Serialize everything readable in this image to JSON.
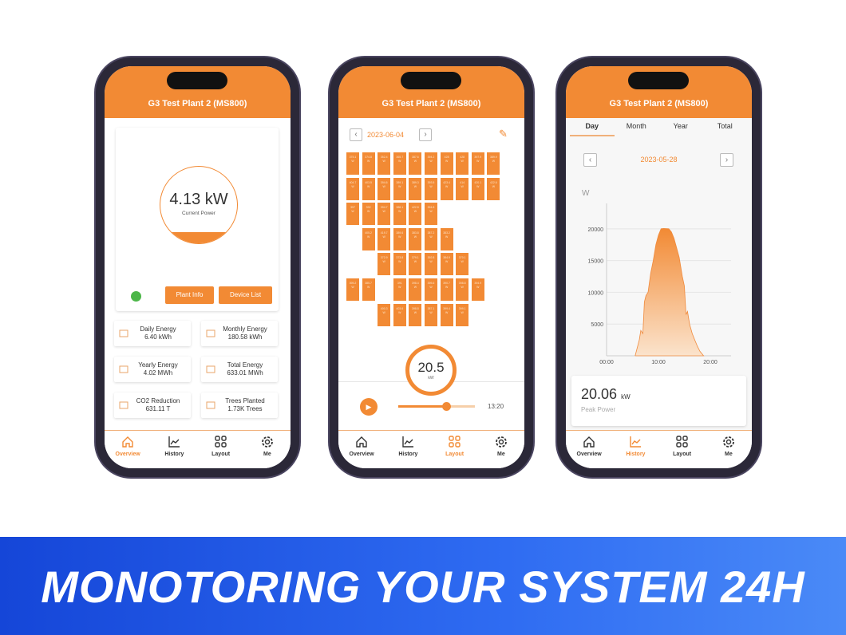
{
  "plant_title": "G3 Test Plant 2 (MS800)",
  "nav": [
    {
      "label": "Overview",
      "icon": "home-icon"
    },
    {
      "label": "History",
      "icon": "chart-icon"
    },
    {
      "label": "Layout",
      "icon": "grid-icon"
    },
    {
      "label": "Me",
      "icon": "gear-icon"
    }
  ],
  "accent": "#f28a34",
  "overview": {
    "power_value": "4.13 kW",
    "power_label": "Current Power",
    "status_color": "#4cb648",
    "plant_info": "Plant Info",
    "device_list": "Device List",
    "stats": [
      {
        "label": "Daily Energy",
        "value": "6.40 kWh",
        "icon": "battery-icon"
      },
      {
        "label": "Monthly Energy",
        "value": "180.58 kWh",
        "icon": "calendar-icon"
      },
      {
        "label": "Yearly Energy",
        "value": "4.02 MWh",
        "icon": "bar-chart-icon"
      },
      {
        "label": "Total Energy",
        "value": "633.01 MWh",
        "icon": "trend-icon"
      },
      {
        "label": "CO2 Reduction",
        "value": "631.11 T",
        "icon": "cloud-icon"
      },
      {
        "label": "Trees Planted",
        "value": "1.73K Trees",
        "icon": "trees-icon"
      }
    ]
  },
  "layout": {
    "date": "2023-06-04",
    "power_value": "20.5",
    "power_unit": "kW",
    "time": "13:20",
    "slider_progress": 0.62,
    "panel_unit": "W",
    "rows": [
      {
        "start": 0,
        "skip": [],
        "values": [
          "375.1",
          "374.8",
          "352.4",
          "365.7",
          "387.6",
          "394.2",
          "428",
          "428",
          "397.9",
          "389.9"
        ]
      },
      {
        "start": 0,
        "skip": [],
        "values": [
          "404.7",
          "403.5",
          "394.6",
          "389.1",
          "389.3",
          "393.5",
          "423.4",
          "414",
          "420.1",
          "422.6"
        ]
      },
      {
        "start": 0,
        "skip": [],
        "values": [
          "397",
          "392",
          "394.7",
          "388.1",
          "422.8",
          "394.8"
        ]
      },
      {
        "start": 1,
        "skip": [],
        "values": [
          "405.2",
          "419.7",
          "389.6",
          "383.8",
          "387.2",
          "383.2"
        ]
      },
      {
        "start": 2,
        "skip": [],
        "values": [
          "372.9",
          "373.8",
          "379.1",
          "392.8",
          "384.9",
          "370.1"
        ]
      },
      {
        "start": 0,
        "skip": [
          2
        ],
        "values": [
          "395.2",
          "385.7",
          "391",
          "398.4",
          "395.6",
          "390.7",
          "398.8",
          "394.9"
        ]
      },
      {
        "start": 2,
        "skip": [],
        "values": [
          "400.3",
          "403.6",
          "398.8",
          "387.1",
          "399.4",
          "399.1"
        ]
      }
    ]
  },
  "history": {
    "tabs": [
      "Day",
      "Month",
      "Year",
      "Total"
    ],
    "active_tab": "Day",
    "date": "2023-05-28",
    "peak_value": "20.06",
    "peak_unit": "kW",
    "peak_label": "Peak Power",
    "chart_data": {
      "type": "area",
      "ylabel": "W",
      "ylim": [
        0,
        24000
      ],
      "xlim": [
        0,
        24
      ],
      "yticks": [
        "5000",
        "10000",
        "15000",
        "20000"
      ],
      "xticks": [
        "00:00",
        "10:00",
        "20:00"
      ],
      "x": [
        5.5,
        6.3,
        6.6,
        7,
        7.3,
        7.6,
        8,
        8.5,
        9,
        9.5,
        10,
        10.5,
        11,
        12,
        12.5,
        13,
        13.5,
        14,
        14.6,
        15,
        15.3,
        15.6,
        16,
        16.5,
        17,
        17.5,
        18,
        18.7
      ],
      "y": [
        0,
        2500,
        4000,
        3500,
        8500,
        9500,
        10000,
        13000,
        15000,
        17500,
        19000,
        20000,
        20060,
        20000,
        19500,
        18500,
        17000,
        15500,
        12500,
        11000,
        6500,
        7000,
        5000,
        3500,
        2500,
        1500,
        700,
        0
      ],
      "grid": true
    }
  },
  "banner": "MONOTORING YOUR SYSTEM 24H"
}
